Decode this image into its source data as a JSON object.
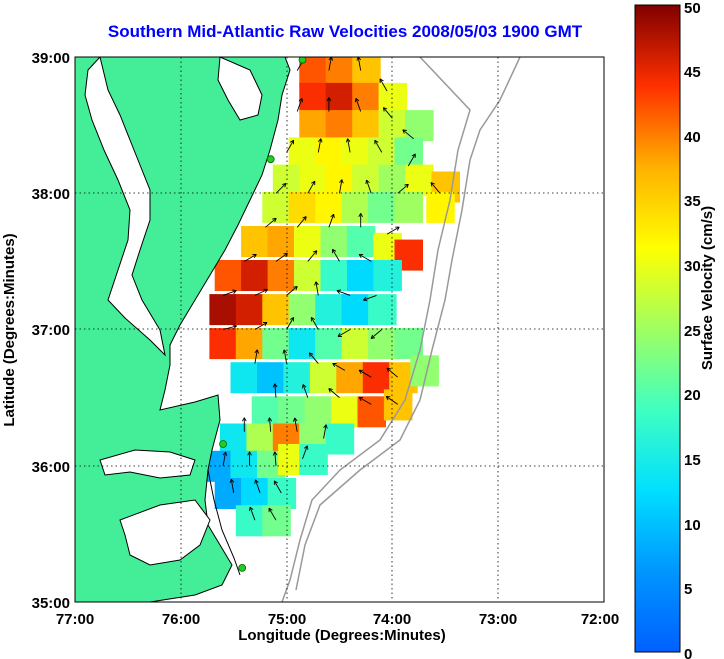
{
  "chart_data": {
    "type": "heatmap",
    "title": "Southern Mid-Atlantic Raw Velocities 2008/05/03 1900 GMT",
    "xlabel": "Longitude (Degrees:Minutes)",
    "ylabel": "Latitude (Degrees:Minutes)",
    "colorbar_label": "Surface Velocity (cm/s)",
    "x_ticks": [
      "77:00",
      "76:00",
      "75:00",
      "74:00",
      "73:00",
      "72:00"
    ],
    "y_ticks": [
      "35:00",
      "36:00",
      "37:00",
      "38:00",
      "39:00"
    ],
    "colorbar_ticks": [
      "0",
      "5",
      "10",
      "15",
      "20",
      "25",
      "30",
      "35",
      "40",
      "45",
      "50"
    ],
    "xlim": [
      -77,
      -72
    ],
    "ylim": [
      35,
      39
    ],
    "clim": [
      0,
      50
    ],
    "grid": true,
    "colormap": "jet",
    "colors": {
      "land": "#44ee99",
      "coastline": "#000000",
      "bathymetry": "#999999",
      "grid": "#000000",
      "title": "#0000ff",
      "site_marker": "#22cc22"
    },
    "cells": [
      [
        -74.75,
        38.9,
        42
      ],
      [
        -74.5,
        38.9,
        40
      ],
      [
        -74.25,
        38.9,
        36
      ],
      [
        -74.75,
        38.7,
        44
      ],
      [
        -74.5,
        38.7,
        46
      ],
      [
        -74.25,
        38.7,
        40
      ],
      [
        -74.0,
        38.7,
        30
      ],
      [
        -74.75,
        38.5,
        38
      ],
      [
        -74.5,
        38.5,
        40
      ],
      [
        -74.25,
        38.5,
        36
      ],
      [
        -74.0,
        38.5,
        28
      ],
      [
        -73.75,
        38.5,
        24
      ],
      [
        -74.85,
        38.3,
        30
      ],
      [
        -74.6,
        38.3,
        32
      ],
      [
        -74.35,
        38.3,
        30
      ],
      [
        -74.1,
        38.3,
        28
      ],
      [
        -73.85,
        38.3,
        22
      ],
      [
        -75.0,
        38.1,
        28
      ],
      [
        -74.75,
        38.1,
        30
      ],
      [
        -74.5,
        38.1,
        32
      ],
      [
        -74.25,
        38.1,
        28
      ],
      [
        -74.0,
        38.1,
        25
      ],
      [
        -73.75,
        38.1,
        30
      ],
      [
        -73.5,
        38.05,
        36
      ],
      [
        -75.1,
        37.9,
        28
      ],
      [
        -74.85,
        37.9,
        34
      ],
      [
        -74.6,
        37.9,
        32
      ],
      [
        -74.35,
        37.9,
        26
      ],
      [
        -74.1,
        37.9,
        22
      ],
      [
        -73.85,
        37.9,
        25
      ],
      [
        -73.55,
        37.9,
        32
      ],
      [
        -75.3,
        37.65,
        36
      ],
      [
        -75.05,
        37.65,
        38
      ],
      [
        -74.8,
        37.65,
        30
      ],
      [
        -74.55,
        37.65,
        24
      ],
      [
        -74.3,
        37.65,
        20
      ],
      [
        -74.05,
        37.6,
        30
      ],
      [
        -73.85,
        37.55,
        44
      ],
      [
        -75.55,
        37.4,
        42
      ],
      [
        -75.3,
        37.4,
        46
      ],
      [
        -75.05,
        37.4,
        40
      ],
      [
        -74.8,
        37.4,
        28
      ],
      [
        -74.55,
        37.4,
        18
      ],
      [
        -74.3,
        37.4,
        12
      ],
      [
        -74.05,
        37.4,
        16
      ],
      [
        -75.6,
        37.15,
        48
      ],
      [
        -75.35,
        37.15,
        46
      ],
      [
        -75.1,
        37.15,
        36
      ],
      [
        -74.85,
        37.15,
        24
      ],
      [
        -74.6,
        37.15,
        16
      ],
      [
        -74.35,
        37.15,
        12
      ],
      [
        -74.1,
        37.15,
        18
      ],
      [
        -75.6,
        36.9,
        44
      ],
      [
        -75.35,
        36.9,
        38
      ],
      [
        -75.1,
        36.9,
        22
      ],
      [
        -74.85,
        36.9,
        14
      ],
      [
        -74.6,
        36.9,
        20
      ],
      [
        -74.35,
        36.9,
        28
      ],
      [
        -74.1,
        36.9,
        24
      ],
      [
        -73.85,
        36.9,
        22
      ],
      [
        -75.4,
        36.65,
        14
      ],
      [
        -75.15,
        36.65,
        10
      ],
      [
        -74.9,
        36.65,
        16
      ],
      [
        -74.65,
        36.65,
        28
      ],
      [
        -74.4,
        36.65,
        38
      ],
      [
        -74.15,
        36.65,
        44
      ],
      [
        -73.9,
        36.65,
        36
      ],
      [
        -73.7,
        36.7,
        24
      ],
      [
        -75.2,
        36.4,
        20
      ],
      [
        -74.95,
        36.4,
        22
      ],
      [
        -74.7,
        36.4,
        24
      ],
      [
        -74.45,
        36.4,
        30
      ],
      [
        -74.2,
        36.4,
        42
      ],
      [
        -73.95,
        36.45,
        36
      ],
      [
        -75.5,
        36.2,
        14
      ],
      [
        -75.25,
        36.2,
        26
      ],
      [
        -75.0,
        36.2,
        40
      ],
      [
        -74.75,
        36.2,
        24
      ],
      [
        -74.5,
        36.2,
        18
      ],
      [
        -75.65,
        36.0,
        8
      ],
      [
        -75.4,
        36.0,
        14
      ],
      [
        -75.15,
        36.0,
        22
      ],
      [
        -74.95,
        36.05,
        30
      ],
      [
        -74.75,
        36.05,
        18
      ],
      [
        -75.55,
        35.8,
        8
      ],
      [
        -75.3,
        35.8,
        12
      ],
      [
        -75.05,
        35.8,
        18
      ],
      [
        -75.35,
        35.6,
        18
      ],
      [
        -75.1,
        35.6,
        22
      ]
    ],
    "vectors": [
      [
        -74.9,
        38.9,
        -60
      ],
      [
        -74.6,
        38.9,
        -80
      ],
      [
        -74.3,
        38.9,
        -100
      ],
      [
        -74.05,
        38.75,
        -120
      ],
      [
        -74.9,
        38.6,
        -70
      ],
      [
        -74.6,
        38.6,
        -90
      ],
      [
        -74.3,
        38.6,
        -110
      ],
      [
        -74.0,
        38.55,
        -130
      ],
      [
        -73.8,
        38.4,
        -140
      ],
      [
        -75.0,
        38.3,
        -60
      ],
      [
        -74.7,
        38.3,
        -80
      ],
      [
        -74.4,
        38.3,
        -100
      ],
      [
        -74.1,
        38.3,
        -120
      ],
      [
        -73.85,
        38.2,
        -60
      ],
      [
        -75.1,
        38.0,
        -45
      ],
      [
        -74.8,
        38.0,
        -60
      ],
      [
        -74.5,
        38.0,
        -80
      ],
      [
        -74.2,
        38.0,
        -110
      ],
      [
        -73.95,
        38.0,
        -40
      ],
      [
        -73.55,
        38.0,
        -130
      ],
      [
        -75.2,
        37.75,
        -40
      ],
      [
        -74.9,
        37.75,
        -50
      ],
      [
        -74.6,
        37.75,
        -70
      ],
      [
        -74.3,
        37.75,
        -90
      ],
      [
        -74.05,
        37.7,
        -30
      ],
      [
        -75.4,
        37.5,
        -30
      ],
      [
        -75.1,
        37.5,
        -35
      ],
      [
        -74.8,
        37.5,
        -50
      ],
      [
        -74.5,
        37.5,
        -120
      ],
      [
        -74.2,
        37.5,
        -150
      ],
      [
        -75.6,
        37.25,
        -20
      ],
      [
        -75.3,
        37.25,
        -25
      ],
      [
        -75.0,
        37.25,
        -40
      ],
      [
        -74.7,
        37.25,
        -100
      ],
      [
        -74.4,
        37.25,
        -160
      ],
      [
        -74.15,
        37.25,
        160
      ],
      [
        -75.6,
        37.0,
        -15
      ],
      [
        -75.3,
        37.0,
        -30
      ],
      [
        -75.0,
        37.0,
        -60
      ],
      [
        -74.7,
        37.0,
        -120
      ],
      [
        -74.4,
        37.0,
        150
      ],
      [
        -74.1,
        37.0,
        140
      ],
      [
        -75.3,
        36.75,
        -80
      ],
      [
        -75.0,
        36.75,
        -100
      ],
      [
        -74.7,
        36.75,
        -130
      ],
      [
        -74.45,
        36.7,
        -150
      ],
      [
        -74.2,
        36.65,
        -150
      ],
      [
        -73.95,
        36.65,
        -140
      ],
      [
        -75.1,
        36.5,
        -95
      ],
      [
        -74.8,
        36.5,
        -110
      ],
      [
        -74.5,
        36.5,
        -140
      ],
      [
        -74.2,
        36.45,
        -150
      ],
      [
        -73.95,
        36.45,
        -145
      ],
      [
        -75.4,
        36.25,
        -90
      ],
      [
        -75.15,
        36.25,
        -95
      ],
      [
        -74.9,
        36.25,
        -100
      ],
      [
        -74.65,
        36.2,
        -80
      ],
      [
        -75.6,
        36.0,
        -80
      ],
      [
        -75.35,
        36.0,
        -90
      ],
      [
        -75.1,
        36.0,
        -95
      ],
      [
        -74.85,
        36.05,
        -70
      ],
      [
        -75.5,
        35.8,
        -100
      ],
      [
        -75.25,
        35.8,
        -110
      ],
      [
        -75.05,
        35.8,
        -120
      ],
      [
        -75.3,
        35.6,
        -110
      ],
      [
        -75.1,
        35.6,
        -120
      ]
    ],
    "sites": [
      [
        -74.85,
        38.98
      ],
      [
        -75.15,
        38.25
      ],
      [
        -75.6,
        36.16
      ],
      [
        -75.42,
        35.25
      ]
    ]
  }
}
